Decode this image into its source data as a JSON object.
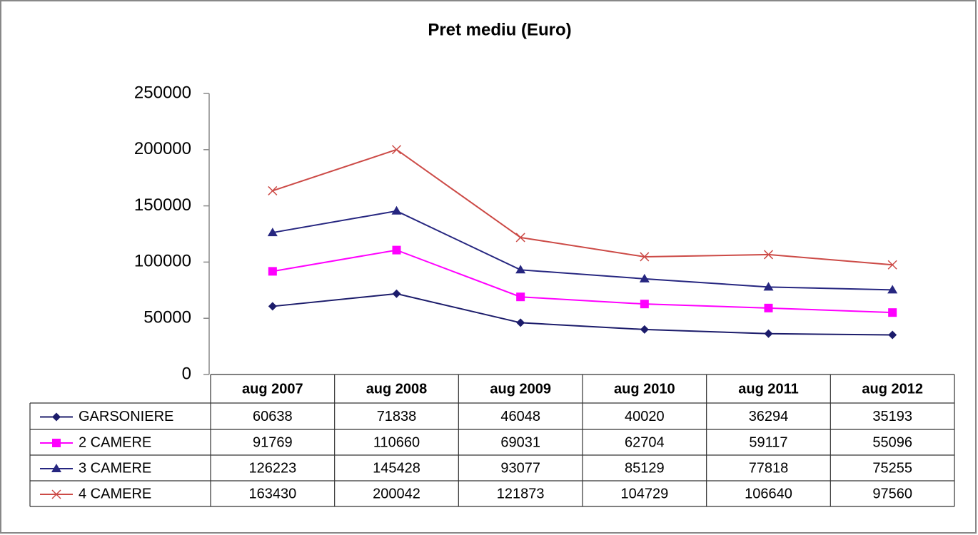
{
  "chart_data": {
    "type": "line",
    "title": "Pret mediu (Euro)",
    "categories": [
      "aug 2007",
      "aug 2008",
      "aug 2009",
      "aug 2010",
      "aug 2011",
      "aug 2012"
    ],
    "series": [
      {
        "name": "GARSONIERE",
        "color": "#1c1c6b",
        "marker": "diamond",
        "values": [
          60638,
          71838,
          46048,
          40020,
          36294,
          35193
        ]
      },
      {
        "name": "2 CAMERE",
        "color": "#ff00ff",
        "marker": "square",
        "values": [
          91769,
          110660,
          69031,
          62704,
          59117,
          55096
        ]
      },
      {
        "name": "3 CAMERE",
        "color": "#262680",
        "marker": "triangle",
        "values": [
          126223,
          145428,
          93077,
          85129,
          77818,
          75255
        ]
      },
      {
        "name": "4 CAMERE",
        "color": "#cc4a46",
        "marker": "x",
        "values": [
          163430,
          200042,
          121873,
          104729,
          106640,
          97560
        ]
      }
    ],
    "ylim": [
      0,
      250000
    ],
    "yticks": [
      0,
      50000,
      100000,
      150000,
      200000,
      250000
    ],
    "grid": false
  }
}
